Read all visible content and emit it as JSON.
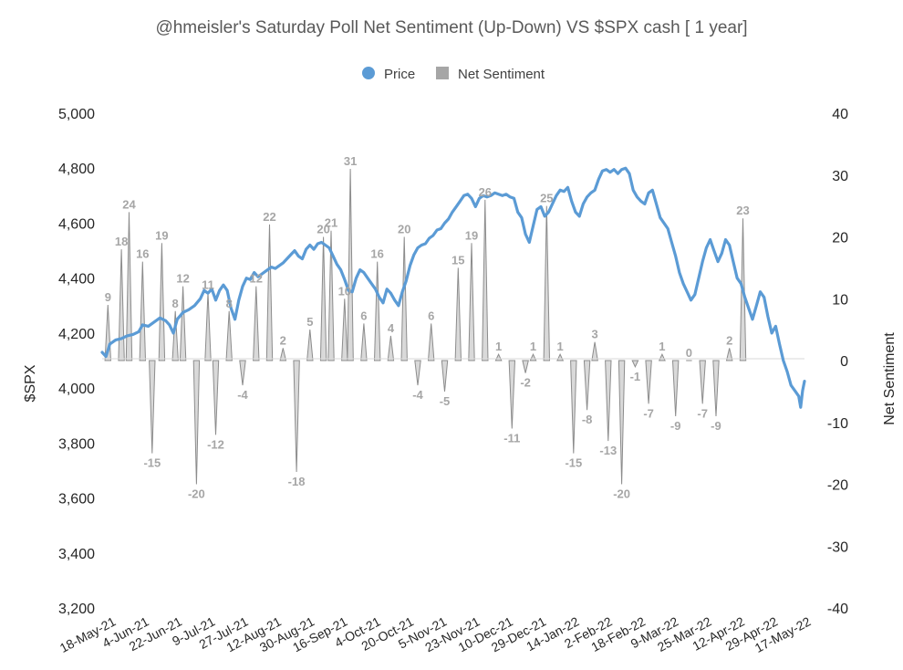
{
  "chart_data": {
    "type": "line+area",
    "title": "@hmeisler's Saturday Poll Net Sentiment (Up-Down) VS $SPX  cash [ 1 year]",
    "legend": {
      "position": "top",
      "entries": [
        "Price",
        "Net Sentiment"
      ]
    },
    "colors": {
      "price": "#5b9bd5",
      "sentiment_fill": "#d9d9d9",
      "sentiment_stroke": "#8c8c8c",
      "sentiment_label": "#a6a6a6"
    },
    "y_left": {
      "label": "$SPX",
      "min": 3200,
      "max": 5000,
      "ticks": [
        "3,200",
        "3,400",
        "3,600",
        "3,800",
        "4,000",
        "4,200",
        "4,400",
        "4,600",
        "4,800",
        "5,000"
      ]
    },
    "y_right": {
      "label": "Net Sentiment",
      "min": -40,
      "max": 40,
      "ticks": [
        "-40",
        "-30",
        "-20",
        "-10",
        "0",
        "10",
        "20",
        "30",
        "40"
      ]
    },
    "x_tick_labels": [
      "18-May-21",
      "4-Jun-21",
      "22-Jun-21",
      "9-Jul-21",
      "27-Jul-21",
      "12-Aug-21",
      "30-Aug-21",
      "16-Sep-21",
      "4-Oct-21",
      "20-Oct-21",
      "5-Nov-21",
      "23-Nov-21",
      "10-Dec-21",
      "29-Dec-21",
      "14-Jan-22",
      "2-Feb-22",
      "18-Feb-22",
      "9-Mar-22",
      "25-Mar-22",
      "12-Apr-22",
      "29-Apr-22",
      "17-May-22"
    ],
    "x_range_days": [
      0,
      365
    ],
    "sentiment": [
      {
        "day": 3,
        "value": 9
      },
      {
        "day": 10,
        "value": 18
      },
      {
        "day": 14,
        "value": 24
      },
      {
        "day": 21,
        "value": 16
      },
      {
        "day": 26,
        "value": -15
      },
      {
        "day": 31,
        "value": 19
      },
      {
        "day": 38,
        "value": 8
      },
      {
        "day": 42,
        "value": 12
      },
      {
        "day": 49,
        "value": -20
      },
      {
        "day": 55,
        "value": 11
      },
      {
        "day": 59,
        "value": -12
      },
      {
        "day": 66,
        "value": 8
      },
      {
        "day": 73,
        "value": -4
      },
      {
        "day": 80,
        "value": 12
      },
      {
        "day": 87,
        "value": 22
      },
      {
        "day": 94,
        "value": 2
      },
      {
        "day": 101,
        "value": -18
      },
      {
        "day": 108,
        "value": 5
      },
      {
        "day": 115,
        "value": 20
      },
      {
        "day": 119,
        "value": 21
      },
      {
        "day": 126,
        "value": 10
      },
      {
        "day": 129,
        "value": 31
      },
      {
        "day": 136,
        "value": 6
      },
      {
        "day": 143,
        "value": 16
      },
      {
        "day": 150,
        "value": 4
      },
      {
        "day": 157,
        "value": 20
      },
      {
        "day": 164,
        "value": -4
      },
      {
        "day": 171,
        "value": 6
      },
      {
        "day": 178,
        "value": -5
      },
      {
        "day": 185,
        "value": 15
      },
      {
        "day": 192,
        "value": 19
      },
      {
        "day": 199,
        "value": 26
      },
      {
        "day": 206,
        "value": 1
      },
      {
        "day": 213,
        "value": -11
      },
      {
        "day": 220,
        "value": -2
      },
      {
        "day": 224,
        "value": 1
      },
      {
        "day": 231,
        "value": 25
      },
      {
        "day": 238,
        "value": 1
      },
      {
        "day": 245,
        "value": -15
      },
      {
        "day": 252,
        "value": -8
      },
      {
        "day": 256,
        "value": 3
      },
      {
        "day": 263,
        "value": -13
      },
      {
        "day": 270,
        "value": -20
      },
      {
        "day": 277,
        "value": -1
      },
      {
        "day": 284,
        "value": -7
      },
      {
        "day": 291,
        "value": 1
      },
      {
        "day": 298,
        "value": -9
      },
      {
        "day": 305,
        "value": 0
      },
      {
        "day": 312,
        "value": -7
      },
      {
        "day": 319,
        "value": -9
      },
      {
        "day": 326,
        "value": 2
      },
      {
        "day": 333,
        "value": 23
      }
    ],
    "price": [
      [
        0,
        4130
      ],
      [
        2,
        4115
      ],
      [
        4,
        4160
      ],
      [
        7,
        4175
      ],
      [
        10,
        4180
      ],
      [
        13,
        4190
      ],
      [
        16,
        4195
      ],
      [
        19,
        4205
      ],
      [
        21,
        4230
      ],
      [
        24,
        4225
      ],
      [
        27,
        4240
      ],
      [
        30,
        4255
      ],
      [
        33,
        4245
      ],
      [
        35,
        4230
      ],
      [
        37,
        4200
      ],
      [
        39,
        4250
      ],
      [
        42,
        4275
      ],
      [
        45,
        4285
      ],
      [
        48,
        4300
      ],
      [
        51,
        4325
      ],
      [
        53,
        4355
      ],
      [
        55,
        4345
      ],
      [
        57,
        4360
      ],
      [
        59,
        4320
      ],
      [
        61,
        4355
      ],
      [
        63,
        4375
      ],
      [
        65,
        4355
      ],
      [
        67,
        4290
      ],
      [
        69,
        4250
      ],
      [
        71,
        4320
      ],
      [
        73,
        4370
      ],
      [
        75,
        4400
      ],
      [
        77,
        4395
      ],
      [
        79,
        4420
      ],
      [
        81,
        4405
      ],
      [
        83,
        4415
      ],
      [
        85,
        4425
      ],
      [
        88,
        4440
      ],
      [
        90,
        4435
      ],
      [
        92,
        4445
      ],
      [
        94,
        4455
      ],
      [
        96,
        4470
      ],
      [
        98,
        4485
      ],
      [
        100,
        4500
      ],
      [
        102,
        4480
      ],
      [
        104,
        4470
      ],
      [
        106,
        4505
      ],
      [
        108,
        4520
      ],
      [
        110,
        4505
      ],
      [
        112,
        4525
      ],
      [
        114,
        4530
      ],
      [
        116,
        4520
      ],
      [
        118,
        4510
      ],
      [
        120,
        4480
      ],
      [
        122,
        4450
      ],
      [
        124,
        4430
      ],
      [
        126,
        4395
      ],
      [
        128,
        4355
      ],
      [
        130,
        4350
      ],
      [
        132,
        4400
      ],
      [
        134,
        4430
      ],
      [
        136,
        4420
      ],
      [
        138,
        4400
      ],
      [
        140,
        4380
      ],
      [
        142,
        4360
      ],
      [
        144,
        4330
      ],
      [
        146,
        4310
      ],
      [
        148,
        4360
      ],
      [
        150,
        4345
      ],
      [
        152,
        4320
      ],
      [
        154,
        4300
      ],
      [
        156,
        4350
      ],
      [
        158,
        4390
      ],
      [
        160,
        4445
      ],
      [
        162,
        4485
      ],
      [
        164,
        4510
      ],
      [
        166,
        4520
      ],
      [
        168,
        4525
      ],
      [
        170,
        4545
      ],
      [
        172,
        4555
      ],
      [
        174,
        4575
      ],
      [
        176,
        4580
      ],
      [
        178,
        4600
      ],
      [
        180,
        4615
      ],
      [
        182,
        4640
      ],
      [
        184,
        4660
      ],
      [
        186,
        4680
      ],
      [
        188,
        4700
      ],
      [
        190,
        4705
      ],
      [
        192,
        4690
      ],
      [
        194,
        4660
      ],
      [
        196,
        4690
      ],
      [
        198,
        4700
      ],
      [
        200,
        4695
      ],
      [
        202,
        4700
      ],
      [
        204,
        4710
      ],
      [
        206,
        4705
      ],
      [
        208,
        4700
      ],
      [
        210,
        4705
      ],
      [
        212,
        4695
      ],
      [
        214,
        4690
      ],
      [
        216,
        4640
      ],
      [
        218,
        4620
      ],
      [
        220,
        4560
      ],
      [
        222,
        4530
      ],
      [
        224,
        4590
      ],
      [
        226,
        4650
      ],
      [
        228,
        4660
      ],
      [
        230,
        4625
      ],
      [
        232,
        4640
      ],
      [
        234,
        4670
      ],
      [
        236,
        4700
      ],
      [
        238,
        4720
      ],
      [
        240,
        4715
      ],
      [
        242,
        4730
      ],
      [
        244,
        4680
      ],
      [
        246,
        4640
      ],
      [
        248,
        4625
      ],
      [
        250,
        4670
      ],
      [
        252,
        4695
      ],
      [
        254,
        4710
      ],
      [
        256,
        4720
      ],
      [
        258,
        4760
      ],
      [
        260,
        4790
      ],
      [
        262,
        4795
      ],
      [
        264,
        4785
      ],
      [
        266,
        4795
      ],
      [
        268,
        4780
      ],
      [
        270,
        4795
      ],
      [
        272,
        4800
      ],
      [
        274,
        4780
      ],
      [
        276,
        4720
      ],
      [
        278,
        4695
      ],
      [
        280,
        4680
      ],
      [
        282,
        4670
      ],
      [
        284,
        4710
      ],
      [
        286,
        4720
      ],
      [
        288,
        4670
      ],
      [
        290,
        4620
      ],
      [
        292,
        4600
      ],
      [
        294,
        4580
      ],
      [
        296,
        4530
      ],
      [
        298,
        4480
      ],
      [
        300,
        4420
      ],
      [
        302,
        4380
      ],
      [
        304,
        4350
      ],
      [
        306,
        4320
      ],
      [
        308,
        4340
      ],
      [
        310,
        4400
      ],
      [
        312,
        4460
      ],
      [
        314,
        4510
      ],
      [
        316,
        4540
      ],
      [
        318,
        4500
      ],
      [
        320,
        4460
      ],
      [
        322,
        4490
      ],
      [
        324,
        4540
      ],
      [
        326,
        4520
      ],
      [
        328,
        4460
      ],
      [
        330,
        4400
      ],
      [
        332,
        4380
      ],
      [
        334,
        4330
      ],
      [
        336,
        4290
      ],
      [
        338,
        4250
      ],
      [
        340,
        4300
      ],
      [
        342,
        4350
      ],
      [
        344,
        4330
      ],
      [
        346,
        4260
      ],
      [
        348,
        4200
      ],
      [
        350,
        4225
      ],
      [
        352,
        4160
      ],
      [
        354,
        4100
      ],
      [
        356,
        4060
      ],
      [
        358,
        4010
      ],
      [
        360,
        3990
      ],
      [
        362,
        3970
      ],
      [
        363,
        3930
      ],
      [
        364,
        3990
      ],
      [
        365,
        4025
      ]
    ]
  }
}
